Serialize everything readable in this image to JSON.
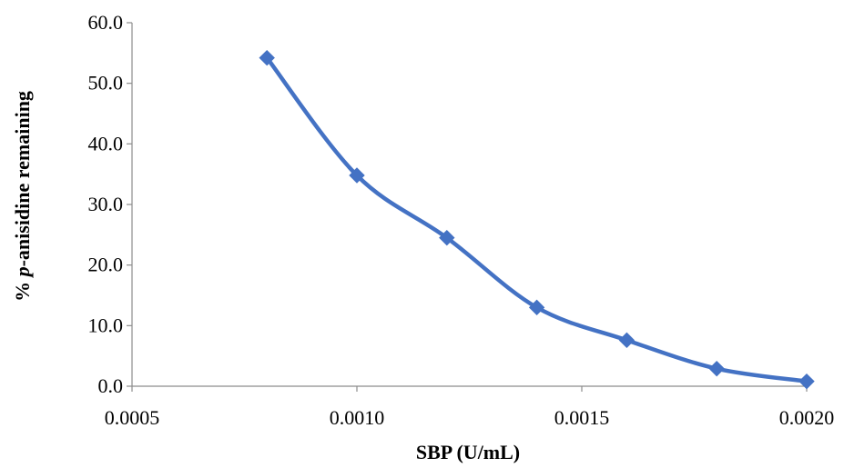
{
  "chart_data": {
    "type": "line",
    "title": "",
    "xlabel": "SBP (U/mL)",
    "ylabel_parts": [
      "% ",
      "p",
      "-anisidine remaining"
    ],
    "x_ticks": [
      "0.0005",
      "0.0010",
      "0.0015",
      "0.0020"
    ],
    "y_ticks": [
      "0.0",
      "10.0",
      "20.0",
      "30.0",
      "40.0",
      "50.0",
      "60.0"
    ],
    "xlim": [
      0.0005,
      0.002
    ],
    "ylim": [
      0,
      60
    ],
    "grid": false,
    "legend": "none",
    "series": [
      {
        "color": "#4472C4",
        "marker": "diamond",
        "smooth": true,
        "x": [
          0.0008,
          0.001,
          0.0012,
          0.0014,
          0.0016,
          0.0018,
          0.002
        ],
        "y": [
          54.2,
          34.8,
          24.5,
          13.0,
          7.6,
          2.9,
          0.8
        ]
      }
    ]
  }
}
